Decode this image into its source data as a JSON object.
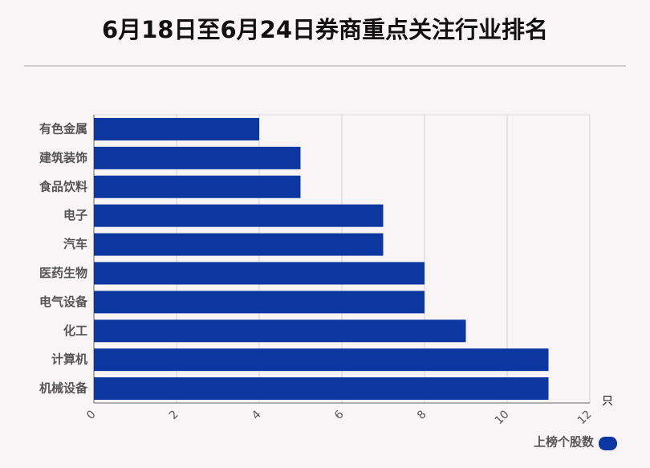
{
  "chart_data": {
    "type": "bar",
    "orientation": "horizontal",
    "title": "6月18日至6月24日券商重点关注行业排名",
    "categories": [
      "有色金属",
      "建筑装饰",
      "食品饮料",
      "电子",
      "汽车",
      "医药生物",
      "电气设备",
      "化工",
      "计算机",
      "机械设备"
    ],
    "series": [
      {
        "name": "上榜个股数",
        "color": "#0d37a0",
        "values": [
          4,
          5,
          5,
          7,
          7,
          8,
          8,
          9,
          11,
          11
        ]
      }
    ],
    "xlim": [
      0,
      12
    ],
    "xticks": [
      0,
      2,
      4,
      6,
      8,
      10,
      12
    ],
    "x_unit": "只",
    "grid": true,
    "legend": "bottom-right"
  }
}
